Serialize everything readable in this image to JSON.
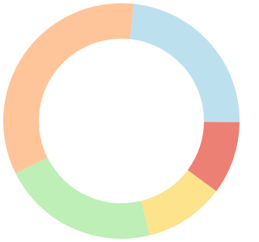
{
  "chart_data": {
    "type": "donut",
    "start_angle": 6,
    "series": [
      {
        "values": [
          23.5,
          10,
          11,
          21.5,
          34
        ],
        "colors": [
          "#bde0ef",
          "#ec8074",
          "#fde38c",
          "#bdefb6",
          "#fec59a"
        ]
      }
    ]
  }
}
